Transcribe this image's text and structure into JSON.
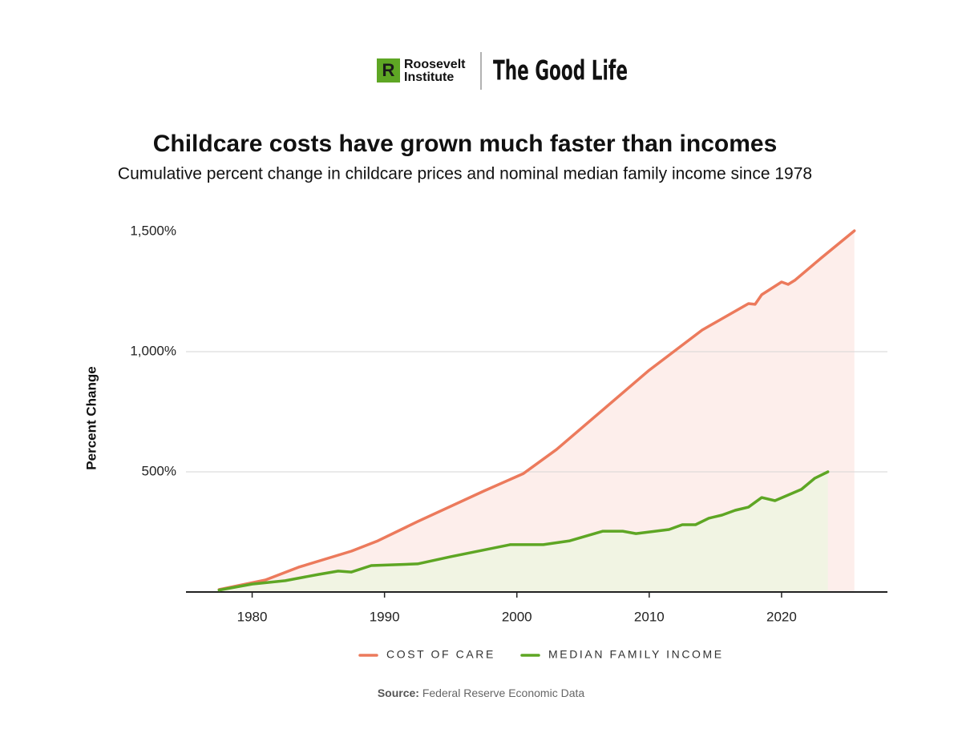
{
  "header": {
    "org": [
      "Roosevelt",
      "Institute"
    ],
    "publication": "The Good Life"
  },
  "chart_data": {
    "type": "line",
    "title": "Childcare costs have grown much faster than incomes",
    "subtitle": "Cumulative percent change in childcare prices and nominal median family income since 1978",
    "y_label": "Percent Change",
    "source_label": "Source:",
    "source": "Federal Reserve Economic Data",
    "xlim": [
      1975,
      2028
    ],
    "xticks": [
      1980,
      1990,
      2000,
      2010,
      2020
    ],
    "ylim": [
      0,
      1500
    ],
    "yticks": [
      {
        "value": 500,
        "label": "500%"
      },
      {
        "value": 1000,
        "label": "1,000%"
      },
      {
        "value": 1500,
        "label": "1,500%"
      }
    ],
    "grid": true,
    "area": true,
    "series": [
      {
        "name": "COST OF CARE",
        "color": "#ec7a5c",
        "area_color": "#fdebe7",
        "x": [
          1977.5,
          1981,
          1983.5,
          1987.5,
          1989.5,
          1992.5,
          1997.5,
          2000.5,
          2003,
          2010,
          2014,
          2016,
          2017.5,
          2018,
          2018.5,
          2020,
          2020.5,
          2021,
          2023,
          2025.5
        ],
        "values": [
          10,
          50,
          103,
          170,
          213,
          293,
          420,
          493,
          593,
          923,
          1090,
          1153,
          1200,
          1197,
          1237,
          1290,
          1280,
          1297,
          1390,
          1503
        ]
      },
      {
        "name": "MEDIAN FAMILY INCOME",
        "color": "#5ea624",
        "area_color": "#eef5e2",
        "x": [
          1977.5,
          1980,
          1982.5,
          1985,
          1986.5,
          1987.5,
          1989,
          1992.5,
          1995,
          1999.5,
          2002,
          2004,
          2006.5,
          2008,
          2009,
          2011.5,
          2012.5,
          2013.5,
          2014.5,
          2015.5,
          2016.5,
          2017.5,
          2018.5,
          2019.5,
          2021.5,
          2022.5,
          2023.5
        ],
        "values": [
          8,
          33,
          47,
          73,
          87,
          83,
          110,
          117,
          147,
          197,
          197,
          213,
          253,
          253,
          243,
          260,
          280,
          280,
          307,
          320,
          340,
          353,
          393,
          380,
          427,
          473,
          500
        ]
      }
    ]
  }
}
